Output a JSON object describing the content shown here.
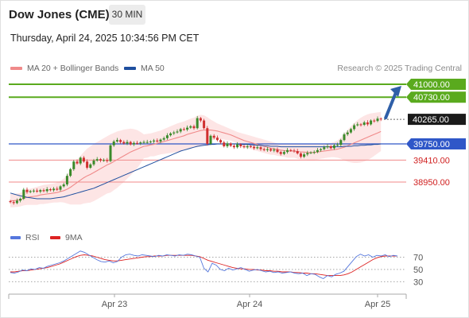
{
  "header": {
    "title": "Dow Jones (CME)",
    "timeframe": "30 MIN",
    "datetime": "Thursday, April 24, 2025 10:34:56 PM CET"
  },
  "legend": {
    "ma20_label": "MA 20 + Bollinger Bands",
    "ma50_label": "MA 50",
    "research": "Research © 2025 Trading Central"
  },
  "rsi_legend": {
    "rsi_label": "RSI",
    "ma9_label": "9MA"
  },
  "colors": {
    "ma20": "#f08a8a",
    "ma50": "#1f4f9f",
    "bands": "#fde0e0",
    "resistance": "#5aaa1e",
    "support_blue": "#2f57c8",
    "support_red": "#f08a8a",
    "rsi": "#5577dd",
    "ma9": "#dd2222",
    "candle_up": "#3a8a2a",
    "candle_down": "#d03030",
    "arrow": "#2f5fa8"
  },
  "chart_data": [
    {
      "type": "candlestick",
      "title": "",
      "x_ticks": [
        "Apr 23",
        "Apr 24",
        "Apr 25"
      ],
      "ylim": [
        38400,
        41150
      ],
      "levels": [
        {
          "value": 41000,
          "label": "41000.00",
          "kind": "resistance"
        },
        {
          "value": 40730,
          "label": "40730.00",
          "kind": "resistance"
        },
        {
          "value": 40265,
          "label": "40265.00",
          "kind": "current"
        },
        {
          "value": 39750,
          "label": "39750.00",
          "kind": "support"
        },
        {
          "value": 39410,
          "label": "39410.00",
          "kind": "support"
        },
        {
          "value": 38950,
          "label": "38950.00",
          "kind": "support"
        }
      ],
      "close": [
        38530,
        38510,
        38560,
        38600,
        38790,
        38740,
        38760,
        38770,
        38750,
        38780,
        38760,
        38800,
        38780,
        38810,
        38790,
        38860,
        38900,
        39080,
        39220,
        39380,
        39340,
        39460,
        39380,
        39250,
        39320,
        39400,
        39430,
        39400,
        39410,
        39390,
        39720,
        39800,
        39830,
        39790,
        39760,
        39790,
        39740,
        39770,
        39760,
        39780,
        39790,
        39790,
        39800,
        39820,
        39800,
        39840,
        39870,
        39930,
        39970,
        39990,
        40010,
        40060,
        40050,
        40090,
        40120,
        40080,
        40290,
        40240,
        40080,
        39750,
        39920,
        39880,
        39830,
        39780,
        39700,
        39760,
        39710,
        39680,
        39740,
        39700,
        39680,
        39700,
        39690,
        39660,
        39680,
        39640,
        39620,
        39640,
        39610,
        39630,
        39580,
        39540,
        39580,
        39620,
        39610,
        39600,
        39550,
        39480,
        39530,
        39560,
        39570,
        39580,
        39620,
        39640,
        39680,
        39700,
        39660,
        39720,
        39730,
        39830,
        39950,
        39990,
        40060,
        40140,
        40160,
        40150,
        40200,
        40160,
        40240,
        40230,
        40280,
        40265
      ],
      "ma20": [
        38560,
        38560,
        38570,
        38580,
        38610,
        38630,
        38640,
        38650,
        38660,
        38680,
        38690,
        38700,
        38710,
        38720,
        38730,
        38750,
        38770,
        38800,
        38840,
        38890,
        38940,
        38990,
        39040,
        39080,
        39110,
        39150,
        39190,
        39230,
        39270,
        39310,
        39340,
        39380,
        39420,
        39460,
        39500,
        39540,
        39580,
        39610,
        39640,
        39670,
        39700,
        39710,
        39730,
        39740,
        39760,
        39780,
        39800,
        39820,
        39840,
        39860,
        39880,
        39900,
        39920,
        39950,
        39970,
        39990,
        40010,
        40030,
        40040,
        40040,
        40040,
        40030,
        40020,
        40000,
        39980,
        39960,
        39940,
        39910,
        39880,
        39850,
        39820,
        39800,
        39780,
        39760,
        39740,
        39720,
        39700,
        39680,
        39660,
        39650,
        39630,
        39620,
        39610,
        39600,
        39600,
        39600,
        39590,
        39580,
        39580,
        39570,
        39570,
        39570,
        39580,
        39590,
        39600,
        39610,
        39620,
        39630,
        39640,
        39660,
        39680,
        39710,
        39740,
        39770,
        39800,
        39830,
        39860,
        39890,
        39920,
        39950,
        39980,
        40010
      ],
      "ma50": [
        38720,
        38700,
        38680,
        38660,
        38650,
        38630,
        38620,
        38610,
        38600,
        38600,
        38600,
        38600,
        38600,
        38610,
        38620,
        38630,
        38640,
        38660,
        38680,
        38700,
        38720,
        38740,
        38760,
        38780,
        38800,
        38820,
        38850,
        38880,
        38910,
        38940,
        38970,
        39000,
        39030,
        39060,
        39090,
        39120,
        39150,
        39180,
        39210,
        39240,
        39270,
        39300,
        39330,
        39360,
        39390,
        39420,
        39450,
        39480,
        39510,
        39540,
        39570,
        39600,
        39620,
        39640,
        39660,
        39680,
        39700,
        39710,
        39720,
        39730,
        39740,
        39740,
        39750,
        39750,
        39750,
        39750,
        39750,
        39750,
        39750,
        39740,
        39740,
        39740,
        39730,
        39730,
        39720,
        39720,
        39710,
        39710,
        39700,
        39700,
        39700,
        39690,
        39690,
        39690,
        39690,
        39690,
        39690,
        39690,
        39690,
        39690,
        39690,
        39690,
        39690,
        39690,
        39690,
        39690,
        39690,
        39690,
        39690,
        39690,
        39700,
        39700,
        39700,
        39710,
        39710,
        39720,
        39720,
        39730,
        39730,
        39740,
        39740,
        39750
      ],
      "bb_upper": [
        38700,
        38700,
        38710,
        38720,
        38760,
        38790,
        38810,
        38830,
        38850,
        38870,
        38890,
        38900,
        38910,
        38920,
        38940,
        38970,
        39020,
        39100,
        39200,
        39300,
        39400,
        39500,
        39580,
        39650,
        39700,
        39750,
        39790,
        39830,
        39870,
        39910,
        39950,
        39980,
        40010,
        40030,
        40050,
        40060,
        40070,
        40060,
        40040,
        40000,
        39950,
        39960,
        39970,
        39990,
        40010,
        40030,
        40060,
        40090,
        40120,
        40150,
        40180,
        40200,
        40220,
        40250,
        40280,
        40300,
        40340,
        40360,
        40350,
        40310,
        40260,
        40220,
        40180,
        40150,
        40120,
        40090,
        40060,
        40030,
        40000,
        39980,
        39960,
        39940,
        39920,
        39900,
        39880,
        39860,
        39840,
        39820,
        39800,
        39780,
        39760,
        39750,
        39740,
        39740,
        39740,
        39740,
        39740,
        39740,
        39740,
        39740,
        39740,
        39740,
        39740,
        39740,
        39750,
        39760,
        39770,
        39790,
        39820,
        39880,
        39960,
        40040,
        40120,
        40190,
        40250,
        40300,
        40340,
        40370,
        40390,
        40400,
        40410,
        40420
      ],
      "bb_lower": [
        38420,
        38420,
        38430,
        38440,
        38460,
        38470,
        38470,
        38470,
        38470,
        38490,
        38490,
        38500,
        38510,
        38520,
        38520,
        38530,
        38520,
        38500,
        38480,
        38480,
        38480,
        38480,
        38500,
        38510,
        38520,
        38550,
        38590,
        38630,
        38670,
        38710,
        38730,
        38780,
        38830,
        38890,
        38950,
        39020,
        39090,
        39160,
        39240,
        39340,
        39450,
        39460,
        39490,
        39490,
        39510,
        39530,
        39540,
        39550,
        39560,
        39570,
        39580,
        39600,
        39620,
        39650,
        39660,
        39680,
        39680,
        39700,
        39730,
        39770,
        39820,
        39840,
        39860,
        39850,
        39840,
        39830,
        39820,
        39790,
        39760,
        39720,
        39680,
        39660,
        39640,
        39620,
        39600,
        39580,
        39560,
        39540,
        39520,
        39520,
        39500,
        39490,
        39480,
        39460,
        39460,
        39460,
        39440,
        39420,
        39420,
        39400,
        39400,
        39400,
        39420,
        39440,
        39450,
        39460,
        39470,
        39470,
        39460,
        39440,
        39400,
        39380,
        39360,
        39350,
        39350,
        39360,
        39380,
        39410,
        39450,
        39500,
        39550,
        39600
      ]
    },
    {
      "type": "line",
      "title": "",
      "y_ticks": [
        70,
        50,
        30
      ],
      "ylim": [
        20,
        85
      ],
      "series": [
        {
          "name": "RSI",
          "values": [
            45,
            44,
            46,
            49,
            48,
            51,
            50,
            53,
            52,
            55,
            57,
            59,
            61,
            64,
            68,
            72,
            76,
            80,
            78,
            74,
            70,
            66,
            63,
            62,
            64,
            61,
            63,
            70,
            74,
            75,
            73,
            72,
            74,
            73,
            72,
            71,
            73,
            72,
            74,
            73,
            72,
            74,
            73,
            75,
            74,
            72,
            70,
            52,
            46,
            60,
            57,
            50,
            48,
            52,
            49,
            51,
            53,
            50,
            47,
            49,
            50,
            48,
            46,
            47,
            45,
            46,
            44,
            45,
            46,
            44,
            43,
            44,
            40,
            43,
            42,
            38,
            35,
            40,
            38,
            42,
            44,
            47,
            55,
            63,
            71,
            75,
            72,
            74,
            70,
            73,
            72,
            74,
            71,
            73,
            72
          ]
        },
        {
          "name": "9MA",
          "values": [
            46,
            46,
            47,
            48,
            48,
            49,
            50,
            51,
            52,
            53,
            55,
            57,
            59,
            62,
            65,
            68,
            71,
            73,
            74,
            73,
            72,
            70,
            68,
            66,
            65,
            64,
            64,
            65,
            66,
            67,
            68,
            69,
            70,
            71,
            71,
            72,
            72,
            72,
            73,
            73,
            73,
            73,
            73,
            73,
            73,
            72,
            71,
            68,
            65,
            63,
            61,
            59,
            57,
            55,
            53,
            52,
            51,
            51,
            50,
            50,
            49,
            49,
            48,
            48,
            47,
            47,
            46,
            46,
            46,
            45,
            45,
            44,
            44,
            43,
            43,
            42,
            41,
            40,
            40,
            40,
            40,
            41,
            43,
            46,
            50,
            54,
            58,
            62,
            66,
            69,
            71,
            72,
            72,
            72,
            72
          ]
        }
      ]
    }
  ]
}
